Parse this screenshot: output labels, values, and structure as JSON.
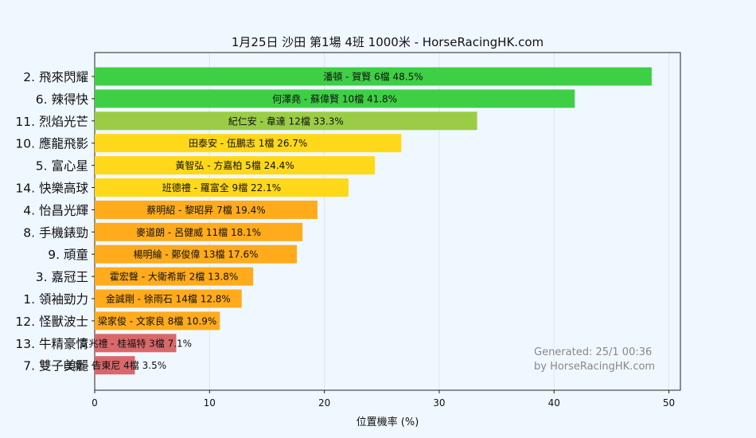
{
  "chart_data": {
    "type": "bar",
    "orientation": "horizontal",
    "title": "1月25日  沙田  第1場  4班  1000米 - HorseRacingHK.com",
    "xlabel": "位置機率 (%)",
    "xlim": [
      0,
      51
    ],
    "xticks": [
      0,
      10,
      20,
      30,
      40,
      50
    ],
    "grid": true,
    "bars": [
      {
        "horse": "2. 飛來閃耀",
        "label": "潘頓 - 賀賢 6檔  48.5%",
        "value": 48.5,
        "color": "#3ecf45"
      },
      {
        "horse": "6. 辣得快",
        "label": "何澤堯 - 蘇偉賢 10檔  41.8%",
        "value": 41.8,
        "color": "#3ecf45"
      },
      {
        "horse": "11. 烈焰光芒",
        "label": "紀仁安 - 韋達 12檔  33.3%",
        "value": 33.3,
        "color": "#9acd45"
      },
      {
        "horse": "10. 應龍飛影",
        "label": "田泰安 - 伍鵬志 1檔  26.7%",
        "value": 26.7,
        "color": "#ffd81a"
      },
      {
        "horse": "5. 富心星",
        "label": "黃智弘 - 方嘉柏 5檔  24.4%",
        "value": 24.4,
        "color": "#ffd81a"
      },
      {
        "horse": "14. 快樂高球",
        "label": "班德禮 - 羅富全 9檔  22.1%",
        "value": 22.1,
        "color": "#ffd81a"
      },
      {
        "horse": "4. 怡昌光輝",
        "label": "蔡明紹 - 黎昭昇 7檔  19.4%",
        "value": 19.4,
        "color": "#ffab1c"
      },
      {
        "horse": "8. 手機錶勁",
        "label": "麥道朗 - 呂健威 11檔  18.1%",
        "value": 18.1,
        "color": "#ffab1c"
      },
      {
        "horse": "9. 頑童",
        "label": "楊明綸 - 鄭俊偉 13檔  17.6%",
        "value": 17.6,
        "color": "#ffab1c"
      },
      {
        "horse": "3. 嘉冠王",
        "label": "霍宏聲 - 大衛希斯 2檔  13.8%",
        "value": 13.8,
        "color": "#ffab1c"
      },
      {
        "horse": "1. 領袖勁力",
        "label": "金誠剛 - 徐雨石 14檔  12.8%",
        "value": 12.8,
        "color": "#ffab1c"
      },
      {
        "horse": "12. 怪獸波士",
        "label": "梁家俊 - 文家良 8檔  10.9%",
        "value": 10.9,
        "color": "#ffab1c"
      },
      {
        "horse": "13. 牛精豪情",
        "label": "艾兆禮 - 桂福特 3檔  7.1%",
        "value": 7.1,
        "color": "#d9686b"
      },
      {
        "horse": "7. 雙子美麗",
        "label": "巴度 - 告東尼 4檔  3.5%",
        "value": 3.5,
        "color": "#d9686b"
      }
    ]
  },
  "footer": {
    "line1": "Generated: 25/1 00:36",
    "line2": "by HorseRacingHK.com"
  }
}
